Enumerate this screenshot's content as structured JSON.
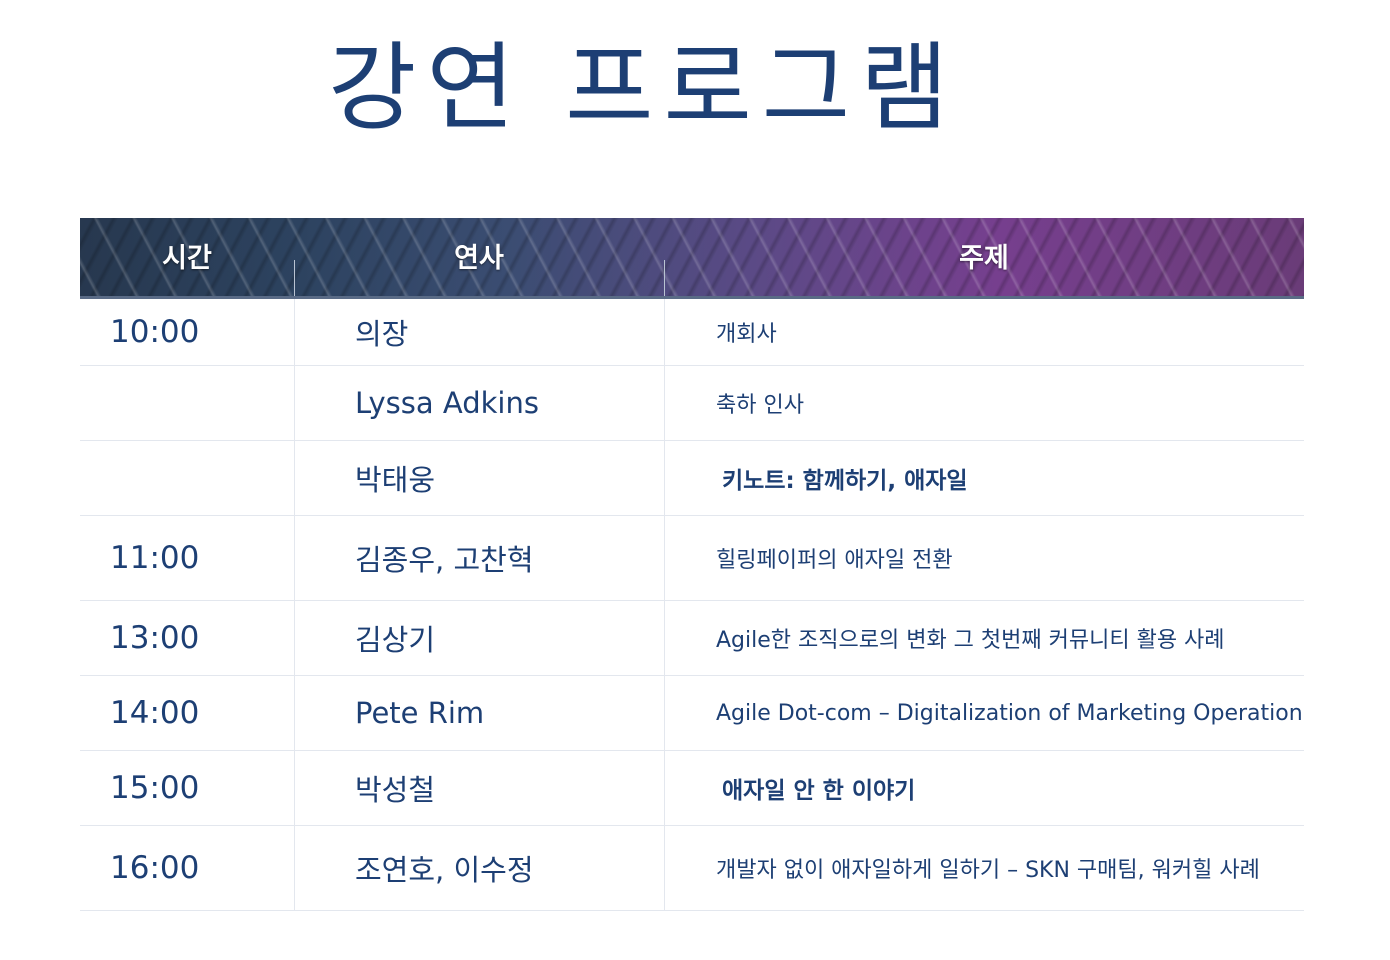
{
  "title": "강연 프로그램",
  "table": {
    "headers": {
      "time": "시간",
      "speaker": "연사",
      "topic": "주제"
    },
    "rows": [
      {
        "time": "10:00",
        "speaker": "의장",
        "topic": "개회사",
        "topic_bold": false
      },
      {
        "time": "",
        "speaker": "Lyssa Adkins",
        "topic": "축하 인사",
        "topic_bold": false
      },
      {
        "time": "",
        "speaker": "박태웅",
        "topic": "키노트: 함께하기, 애자일",
        "topic_bold": true
      },
      {
        "time": "11:00",
        "speaker": "김종우, 고찬혁",
        "topic": "힐링페이퍼의 애자일 전환",
        "topic_bold": false
      },
      {
        "time": "13:00",
        "speaker": "김상기",
        "topic": "Agile한 조직으로의 변화 그 첫번째 커뮤니티 활용 사례",
        "topic_bold": false
      },
      {
        "time": "14:00",
        "speaker": "Pete Rim",
        "topic": "Agile Dot-com – Digitalization of Marketing Operation",
        "topic_bold": false
      },
      {
        "time": "15:00",
        "speaker": "박성철",
        "topic": "애자일 안 한 이야기",
        "topic_bold": true
      },
      {
        "time": "16:00",
        "speaker": "조연호, 이수정",
        "topic": "개발자 없이 애자일하게 일하기 – SKN 구매팀, 워커힐 사례",
        "topic_bold": false
      }
    ]
  },
  "colors": {
    "title": "#1d3f74",
    "text": "#1d3f74",
    "header_text": "#ffffff",
    "rule": "#e3e7ee"
  }
}
